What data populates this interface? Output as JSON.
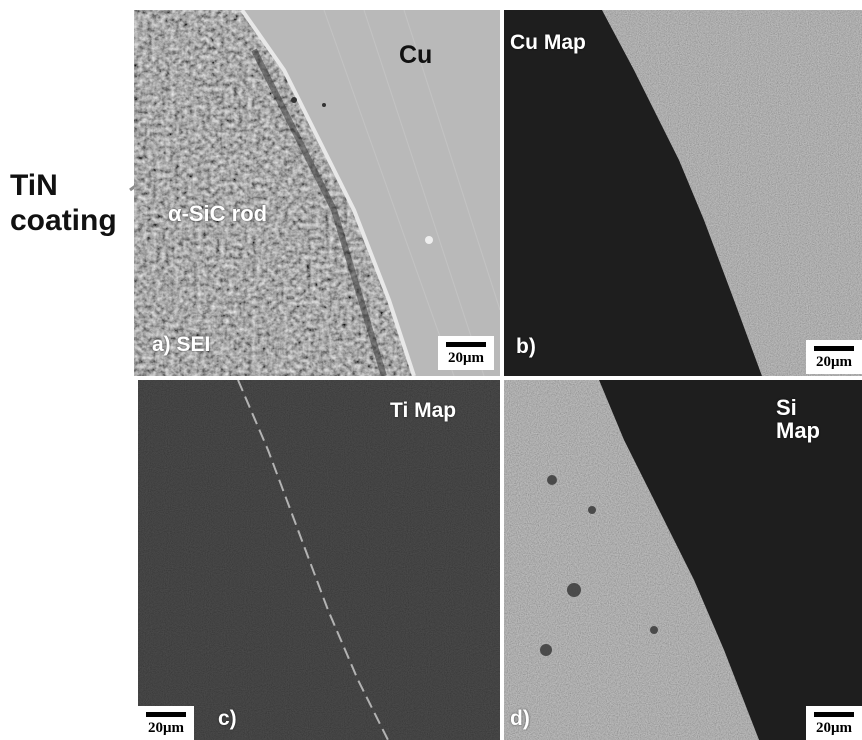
{
  "figure": {
    "side_label_line1": "TiN",
    "side_label_line2": "coating",
    "panels": {
      "a": {
        "material_label": "Cu",
        "region_label": "α-SiC rod",
        "caption": "a) SEI",
        "scale": "20μm"
      },
      "b": {
        "title": "Cu Map",
        "caption": "b)",
        "scale": "20μm"
      },
      "c": {
        "title": "Ti Map",
        "caption": "c)",
        "scale": "20μm"
      },
      "d": {
        "title_line1": "Si",
        "title_line2": "Map",
        "caption": "d)",
        "scale": "20μm"
      }
    }
  },
  "colors": {
    "background": "#ffffff",
    "map_dark": "#1e1e1e",
    "map_light": "#9a9a9a",
    "sem_cu": "#b9b9b9",
    "sem_sic": "#6e6e6e"
  }
}
